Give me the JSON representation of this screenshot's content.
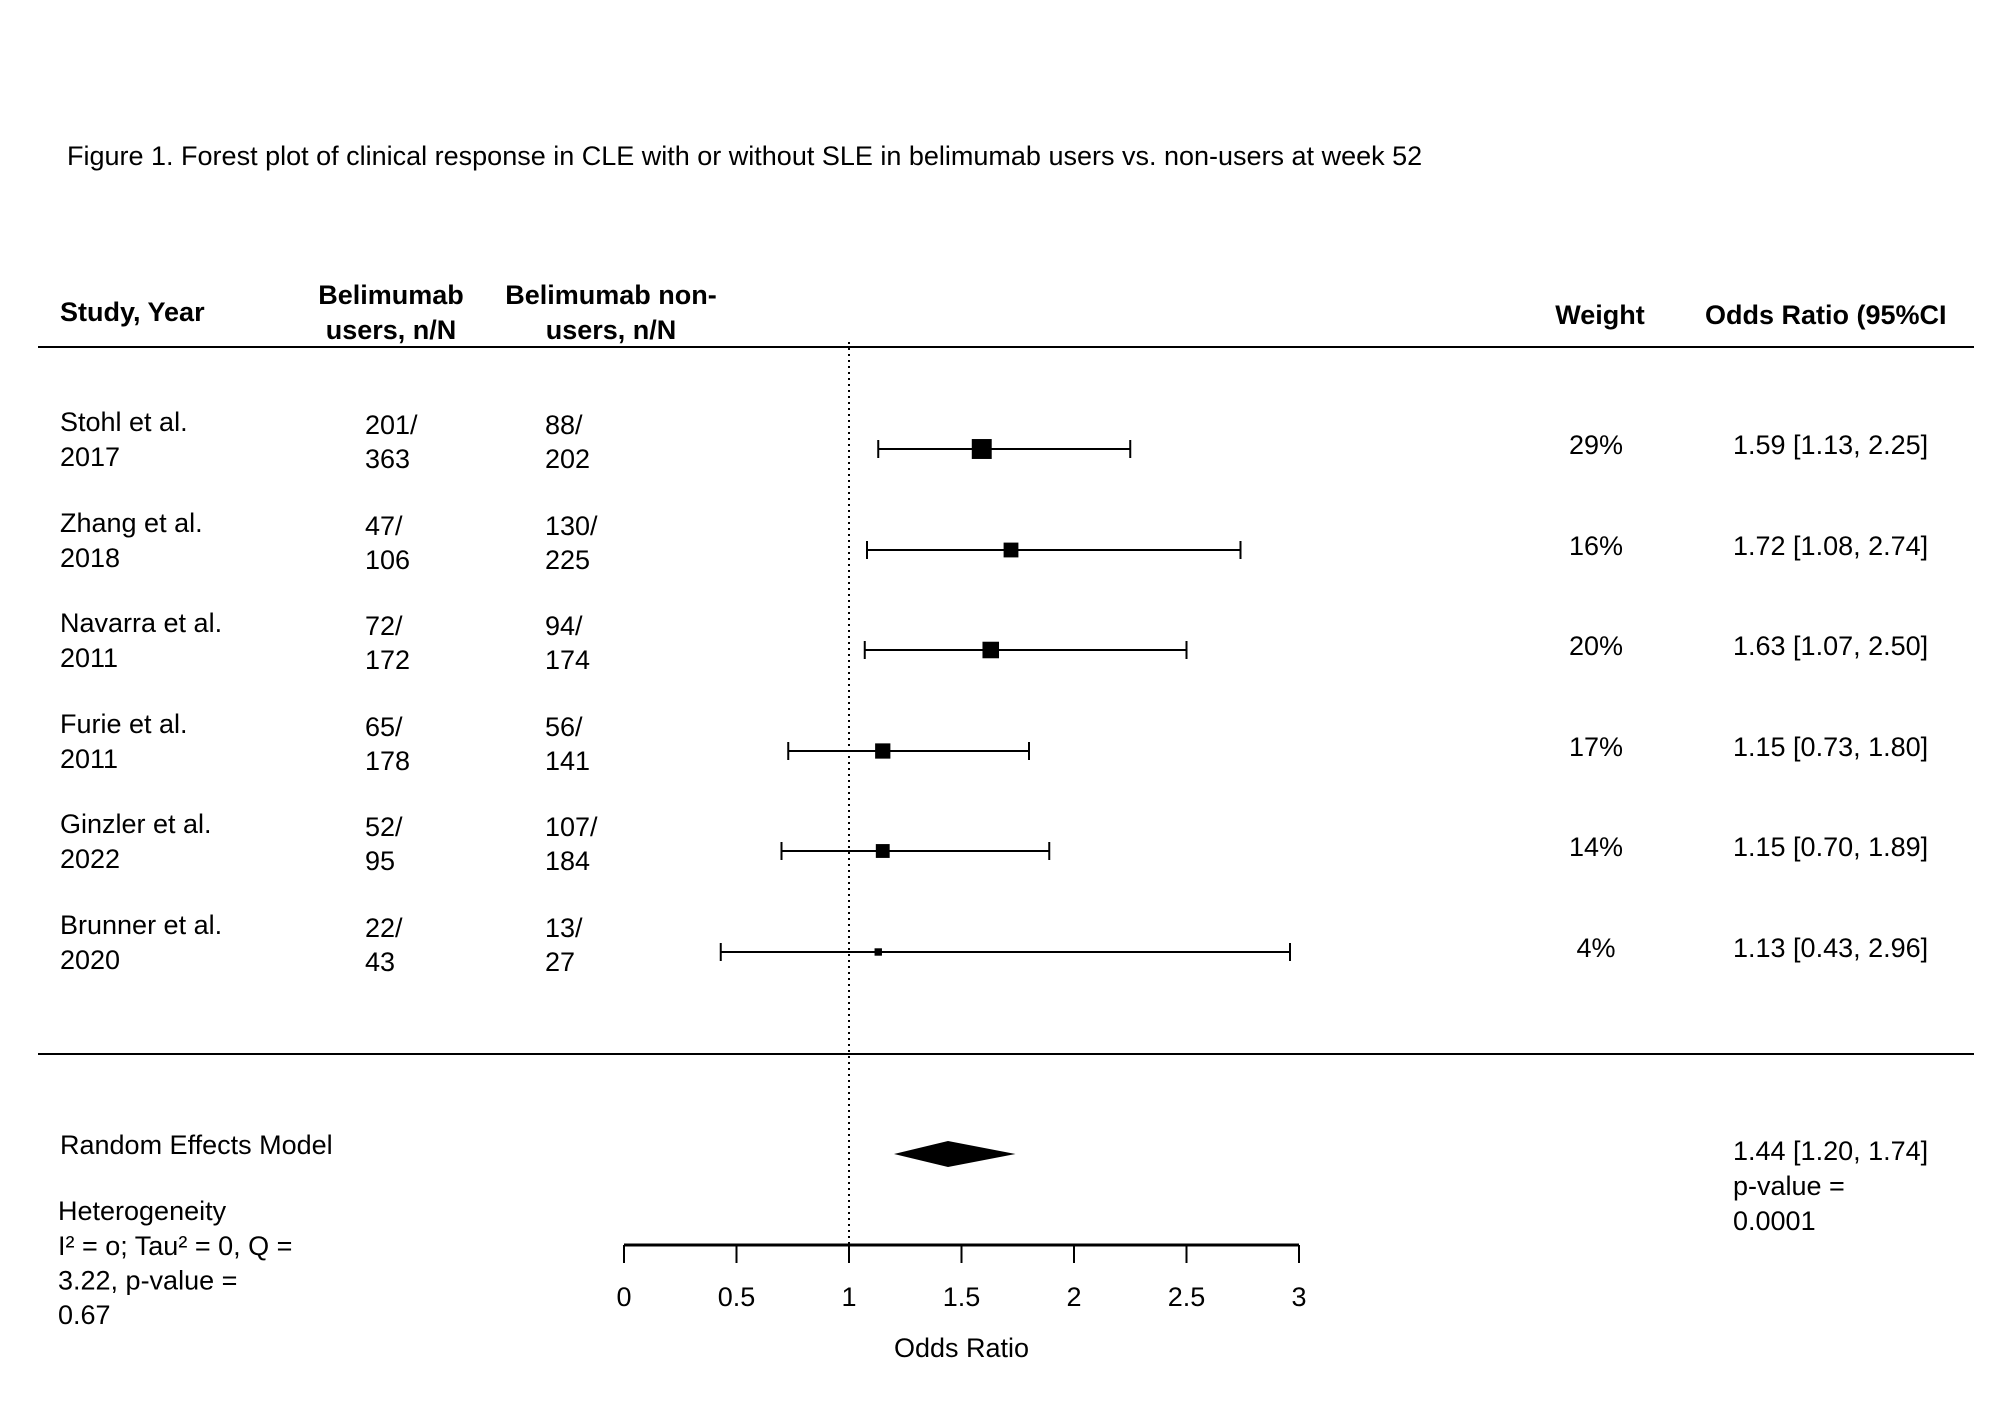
{
  "chart_data": {
    "type": "forest",
    "title": "Figure 1. Forest plot of clinical response in CLE with or without SLE in belimumab users vs. non-users at week 52",
    "headers": {
      "study": "Study, Year",
      "users": [
        "Belimumab",
        "users, n/N"
      ],
      "nonusers": [
        "Belimumab non-",
        "users, n/N"
      ],
      "weight": "Weight",
      "or": "Odds Ratio (95%CI"
    },
    "studies": [
      {
        "name": "Stohl et al.",
        "year": "2017",
        "users": [
          "201/",
          "363"
        ],
        "nonusers": [
          "88/",
          "202"
        ],
        "weight": 29,
        "weight_label": "29%",
        "or": 1.59,
        "lower": 1.13,
        "upper": 2.25,
        "or_label": "1.59 [1.13, 2.25]"
      },
      {
        "name": "Zhang et al.",
        "year": "2018",
        "users": [
          "47/",
          "106"
        ],
        "nonusers": [
          "130/",
          "225"
        ],
        "weight": 16,
        "weight_label": "16%",
        "or": 1.72,
        "lower": 1.08,
        "upper": 2.74,
        "or_label": "1.72 [1.08, 2.74]"
      },
      {
        "name": "Navarra et al.",
        "year": "2011",
        "users": [
          "72/",
          "172"
        ],
        "nonusers": [
          "94/",
          "174"
        ],
        "weight": 20,
        "weight_label": "20%",
        "or": 1.63,
        "lower": 1.07,
        "upper": 2.5,
        "or_label": "1.63 [1.07, 2.50]"
      },
      {
        "name": "Furie et al.",
        "year": "2011",
        "users": [
          "65/",
          "178"
        ],
        "nonusers": [
          "56/",
          "141"
        ],
        "weight": 17,
        "weight_label": "17%",
        "or": 1.15,
        "lower": 0.73,
        "upper": 1.8,
        "or_label": "1.15 [0.73, 1.80]"
      },
      {
        "name": "Ginzler et al.",
        "year": "2022",
        "users": [
          "52/",
          "95"
        ],
        "nonusers": [
          "107/",
          "184"
        ],
        "weight": 14,
        "weight_label": "14%",
        "or": 1.15,
        "lower": 0.7,
        "upper": 1.89,
        "or_label": "1.15 [0.70, 1.89]"
      },
      {
        "name": "Brunner et al.",
        "year": "2020",
        "users": [
          "22/",
          "43"
        ],
        "nonusers": [
          "13/",
          "27"
        ],
        "weight": 4,
        "weight_label": "4%",
        "or": 1.13,
        "lower": 0.43,
        "upper": 2.96,
        "or_label": "1.13 [0.43, 2.96]"
      }
    ],
    "summary": {
      "name": "Random Effects Model",
      "or": 1.44,
      "lower": 1.2,
      "upper": 1.74,
      "or_label": "1.44 [1.20, 1.74]",
      "p_lines": [
        "p-value =",
        "0.0001"
      ]
    },
    "heterogeneity": [
      "Heterogeneity",
      "I² = o; Tau² = 0, Q =",
      "3.22, p-value =",
      "0.67"
    ],
    "ref_line": 1,
    "xlabel": "Odds Ratio",
    "xlim": [
      0,
      3
    ],
    "xticks": [
      0,
      0.5,
      1,
      1.5,
      2,
      2.5,
      3
    ]
  }
}
